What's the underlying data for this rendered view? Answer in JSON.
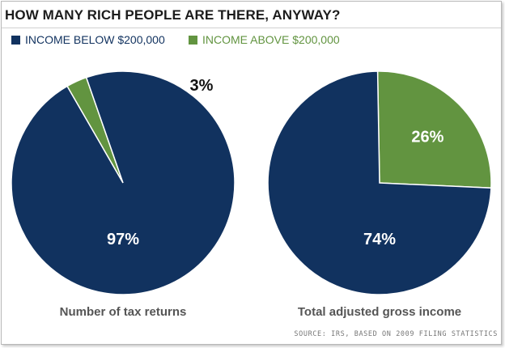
{
  "title": "HOW MANY RICH PEOPLE ARE THERE, ANYWAY?",
  "source": "SOURCE: IRS, BASED ON 2009 FILING STATISTICS",
  "colors": {
    "below": "#11325f",
    "above": "#629440"
  },
  "legend": [
    {
      "label": "INCOME BELOW $200,000",
      "color": "#11325f"
    },
    {
      "label": "INCOME ABOVE $200,000",
      "color": "#629440"
    }
  ],
  "chart_data": [
    {
      "type": "pie",
      "title": "Number of tax returns",
      "series": [
        {
          "name": "INCOME BELOW $200,000",
          "value": 97,
          "label": "97%"
        },
        {
          "name": "INCOME ABOVE $200,000",
          "value": 3,
          "label": "3%"
        }
      ]
    },
    {
      "type": "pie",
      "title": "Total adjusted gross income",
      "series": [
        {
          "name": "INCOME BELOW $200,000",
          "value": 74,
          "label": "74%"
        },
        {
          "name": "INCOME ABOVE $200,000",
          "value": 26,
          "label": "26%"
        }
      ]
    }
  ]
}
